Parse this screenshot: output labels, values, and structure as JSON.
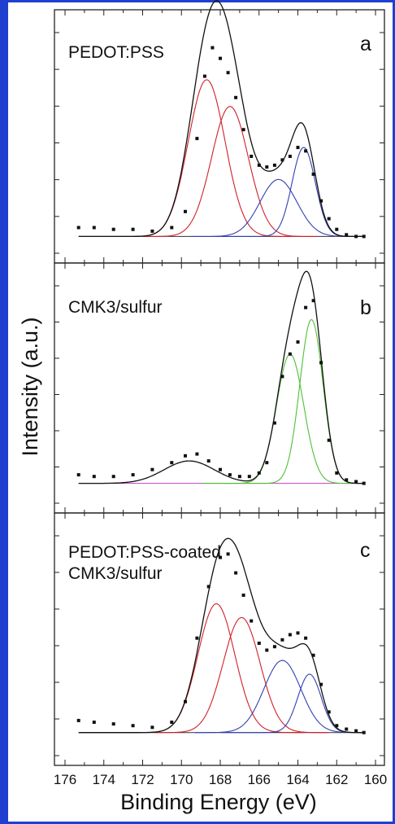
{
  "colors": {
    "frame": "#1f3fd0",
    "data_points": "#111111",
    "envelope": "#111111",
    "baseline": "#333333",
    "red_components": "#d0202a",
    "blue_components": "#3340b0",
    "green_components": "#4ec035",
    "magenta_baseline": "#c040c0"
  },
  "xlabel": "Binding Energy (eV)",
  "ylabel": "Intensity (a.u.)",
  "chart_data": [
    {
      "type": "line",
      "panel_label": "a",
      "title": "PEDOT:PSS",
      "xlabel": "Binding Energy (eV)",
      "ylabel": "Intensity (a.u.)",
      "xlim": [
        176,
        160
      ],
      "ylim": [
        0,
        1.2
      ],
      "xticks": [
        176,
        174,
        172,
        170,
        168,
        166,
        164,
        162,
        160
      ],
      "x": [
        175.3,
        174.5,
        173.5,
        172.5,
        171.5,
        170.5,
        169.8,
        169.2,
        168.8,
        168.4,
        168.0,
        167.6,
        167.2,
        166.8,
        166.4,
        166.0,
        165.6,
        165.2,
        164.8,
        164.4,
        164.0,
        163.6,
        163.2,
        162.8,
        162.4,
        162.0,
        161.5,
        161.0,
        160.6
      ],
      "series": [
        {
          "values": [
            0.05,
            0.05,
            0.04,
            0.04,
            0.03,
            0.05,
            0.14,
            0.55,
            0.9,
            1.06,
            1.0,
            0.92,
            0.78,
            0.6,
            0.45,
            0.4,
            0.39,
            0.4,
            0.43,
            0.45,
            0.5,
            0.48,
            0.35,
            0.2,
            0.1,
            0.04,
            0.01,
            0.0,
            0.0
          ]
        }
      ],
      "components": [
        {
          "center": 168.7,
          "height": 0.88,
          "width": 0.95,
          "color": "red"
        },
        {
          "center": 167.5,
          "height": 0.73,
          "width": 0.95,
          "color": "red"
        },
        {
          "center": 165.0,
          "height": 0.32,
          "width": 0.95,
          "color": "blue"
        },
        {
          "center": 163.7,
          "height": 0.5,
          "width": 0.6,
          "color": "blue"
        }
      ]
    },
    {
      "type": "line",
      "panel_label": "b",
      "title": "CMK3/sulfur",
      "xlabel": "Binding Energy (eV)",
      "ylabel": "Intensity (a.u.)",
      "xlim": [
        176,
        160
      ],
      "ylim": [
        0,
        1.2
      ],
      "xticks": [
        176,
        174,
        172,
        170,
        168,
        166,
        164,
        162,
        160
      ],
      "x": [
        175.3,
        174.5,
        173.5,
        172.5,
        171.5,
        170.5,
        169.8,
        169.2,
        168.6,
        168.0,
        167.5,
        167.0,
        166.5,
        166.0,
        165.6,
        165.2,
        164.8,
        164.4,
        164.0,
        163.6,
        163.2,
        162.8,
        162.4,
        162.0,
        161.5,
        161.0,
        160.6
      ],
      "series": [
        {
          "values": [
            0.05,
            0.04,
            0.04,
            0.05,
            0.08,
            0.12,
            0.16,
            0.17,
            0.13,
            0.08,
            0.05,
            0.04,
            0.04,
            0.06,
            0.12,
            0.35,
            0.62,
            0.75,
            0.82,
            1.02,
            1.06,
            0.7,
            0.25,
            0.06,
            0.02,
            0.01,
            0.0
          ]
        }
      ],
      "components": [
        {
          "center": 164.4,
          "height": 0.75,
          "width": 0.7,
          "color": "green"
        },
        {
          "center": 163.3,
          "height": 0.95,
          "width": 0.6,
          "color": "green"
        }
      ]
    },
    {
      "type": "line",
      "panel_label": "c",
      "title": "PEDOT:PSS-coated\nCMK3/sulfur",
      "xlabel": "Binding Energy (eV)",
      "ylabel": "Intensity (a.u.)",
      "xlim": [
        176,
        160
      ],
      "ylim": [
        0,
        1.2
      ],
      "xticks": [
        176,
        174,
        172,
        170,
        168,
        166,
        164,
        162,
        160
      ],
      "x": [
        175.3,
        174.5,
        173.5,
        172.5,
        171.5,
        170.5,
        169.8,
        169.2,
        168.6,
        168.0,
        167.6,
        167.2,
        166.8,
        166.4,
        166.0,
        165.6,
        165.2,
        164.8,
        164.4,
        164.0,
        163.6,
        163.2,
        162.8,
        162.4,
        162.0,
        161.5,
        161.0,
        160.6
      ],
      "series": [
        {
          "values": [
            0.07,
            0.06,
            0.05,
            0.04,
            0.03,
            0.06,
            0.18,
            0.55,
            0.85,
            1.02,
            1.04,
            0.93,
            0.8,
            0.65,
            0.52,
            0.48,
            0.5,
            0.54,
            0.57,
            0.58,
            0.55,
            0.45,
            0.28,
            0.12,
            0.04,
            0.02,
            0.01,
            0.0
          ]
        }
      ],
      "components": [
        {
          "center": 168.2,
          "height": 0.75,
          "width": 0.95,
          "color": "red"
        },
        {
          "center": 166.9,
          "height": 0.67,
          "width": 0.95,
          "color": "red"
        },
        {
          "center": 164.8,
          "height": 0.42,
          "width": 0.95,
          "color": "blue"
        },
        {
          "center": 163.4,
          "height": 0.34,
          "width": 0.6,
          "color": "blue"
        }
      ]
    }
  ]
}
